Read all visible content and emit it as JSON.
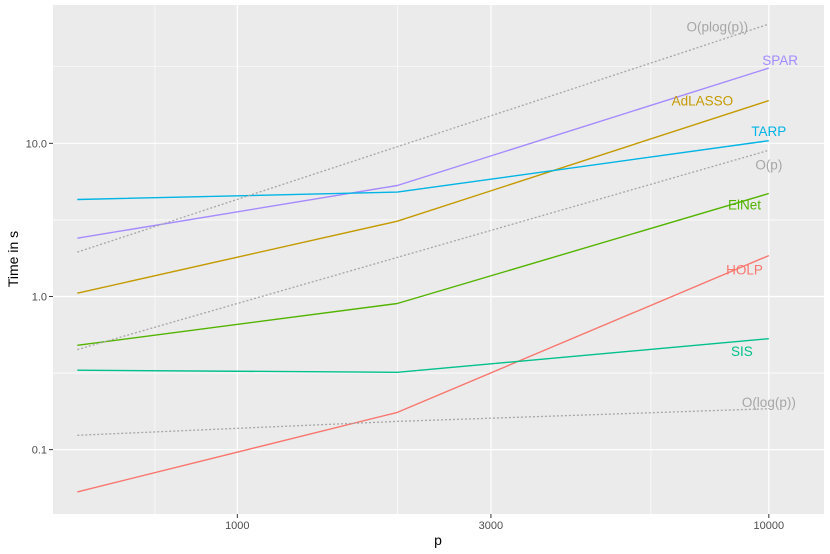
{
  "chart_data": {
    "type": "line",
    "xlabel": "p",
    "ylabel": "Time in s",
    "x_scale": "log10",
    "y_scale": "log10",
    "xlim": [
      450,
      12700
    ],
    "ylim": [
      0.038,
      80
    ],
    "x_ticks": [
      {
        "value": 1000,
        "label": "1000"
      },
      {
        "value": 3000,
        "label": "3000"
      },
      {
        "value": 10000,
        "label": "10000"
      }
    ],
    "x_minor_gridlines": [
      700,
      2000,
      6000
    ],
    "y_ticks": [
      {
        "value": 0.1,
        "label": "0.1"
      },
      {
        "value": 1.0,
        "label": "1.0"
      },
      {
        "value": 10.0,
        "label": "10.0"
      }
    ],
    "grid": true,
    "legend": "none (labels placed at line ends)",
    "series": [
      {
        "name": "SPAR",
        "color": "#a58aff",
        "dash": "solid",
        "x": [
          500,
          2000,
          10000
        ],
        "y": [
          2.4,
          5.3,
          31
        ]
      },
      {
        "name": "AdLASSO",
        "color": "#c49a00",
        "dash": "solid",
        "x": [
          500,
          2000,
          10000
        ],
        "y": [
          1.05,
          3.1,
          19
        ]
      },
      {
        "name": "TARP",
        "color": "#00b4e5",
        "dash": "solid",
        "x": [
          500,
          2000,
          10000
        ],
        "y": [
          4.3,
          4.8,
          10.4
        ]
      },
      {
        "name": "ElNet",
        "color": "#53b400",
        "dash": "solid",
        "x": [
          500,
          2000,
          10000
        ],
        "y": [
          0.48,
          0.9,
          4.7
        ]
      },
      {
        "name": "HOLP",
        "color": "#f8766d",
        "dash": "solid",
        "x": [
          500,
          2000,
          10000
        ],
        "y": [
          0.053,
          0.175,
          1.85
        ]
      },
      {
        "name": "SIS",
        "color": "#00c08b",
        "dash": "solid",
        "x": [
          500,
          2000,
          10000
        ],
        "y": [
          0.33,
          0.32,
          0.53
        ]
      },
      {
        "name": "O(plog(p))",
        "color": "#a6a6a6",
        "dash": "dotted",
        "x": [
          500,
          2000,
          10000
        ],
        "y": [
          1.95,
          9.5,
          60
        ]
      },
      {
        "name": "O(p)",
        "color": "#a6a6a6",
        "dash": "dotted",
        "x": [
          500,
          2000,
          10000
        ],
        "y": [
          0.45,
          1.8,
          9
        ]
      },
      {
        "name": "O(log(p))",
        "color": "#a6a6a6",
        "dash": "dotted",
        "x": [
          500,
          2000,
          10000
        ],
        "y": [
          0.124,
          0.153,
          0.185
        ]
      }
    ],
    "annotations": [
      {
        "text": "O(plog(p))",
        "color": "#a6a6a6",
        "x": 8000,
        "y": 58,
        "anchor": "middle"
      },
      {
        "text": "SPAR",
        "color": "#a58aff",
        "x": 10500,
        "y": 35,
        "anchor": "middle"
      },
      {
        "text": "AdLASSO",
        "color": "#c49a00",
        "x": 7500,
        "y": 19,
        "anchor": "middle"
      },
      {
        "text": "TARP",
        "color": "#00b4e5",
        "x": 10000,
        "y": 12,
        "anchor": "middle"
      },
      {
        "text": "O(p)",
        "color": "#a6a6a6",
        "x": 10000,
        "y": 7.3,
        "anchor": "middle"
      },
      {
        "text": "ElNet",
        "color": "#53b400",
        "x": 9000,
        "y": 4.0,
        "anchor": "middle"
      },
      {
        "text": "HOLP",
        "color": "#f8766d",
        "x": 9000,
        "y": 1.5,
        "anchor": "middle"
      },
      {
        "text": "SIS",
        "color": "#00c08b",
        "x": 8900,
        "y": 0.44,
        "anchor": "middle"
      },
      {
        "text": "O(log(p))",
        "color": "#a6a6a6",
        "x": 10000,
        "y": 0.205,
        "anchor": "middle"
      }
    ]
  }
}
